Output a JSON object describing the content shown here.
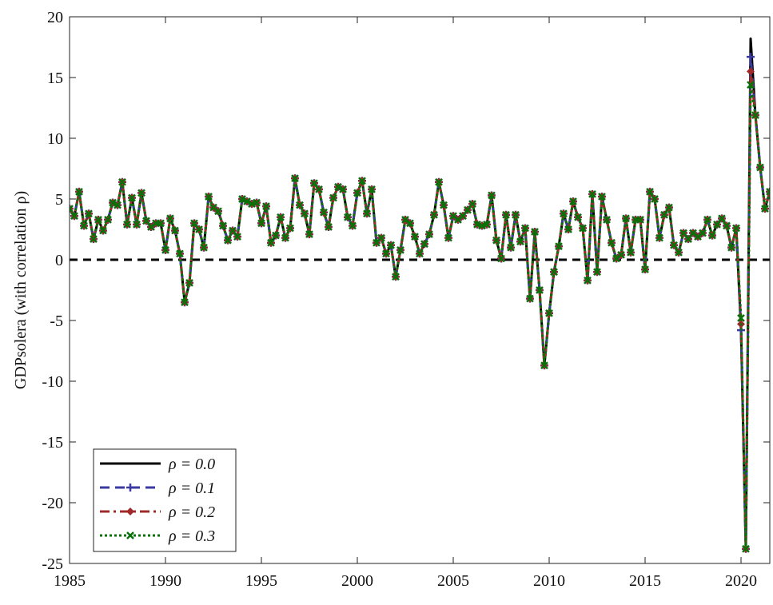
{
  "chart_data": {
    "type": "line",
    "y_label": "GDPsolera (with correlation ρ)",
    "xlim": [
      1985,
      2021.5
    ],
    "ylim": [
      -25,
      20
    ],
    "xticks": [
      1985,
      1990,
      1995,
      2000,
      2005,
      2010,
      2015,
      2020
    ],
    "yticks": [
      -25,
      -20,
      -15,
      -10,
      -5,
      0,
      5,
      10,
      15,
      20
    ],
    "hline": 0,
    "legend": "lower left",
    "x": [
      1985,
      1985.25,
      1985.5,
      1985.75,
      1986,
      1986.25,
      1986.5,
      1986.75,
      1987,
      1987.25,
      1987.5,
      1987.75,
      1988,
      1988.25,
      1988.5,
      1988.75,
      1989,
      1989.25,
      1989.5,
      1989.75,
      1990,
      1990.25,
      1990.5,
      1990.75,
      1991,
      1991.25,
      1991.5,
      1991.75,
      1992,
      1992.25,
      1992.5,
      1992.75,
      1993,
      1993.25,
      1993.5,
      1993.75,
      1994,
      1994.25,
      1994.5,
      1994.75,
      1995,
      1995.25,
      1995.5,
      1995.75,
      1996,
      1996.25,
      1996.5,
      1996.75,
      1997,
      1997.25,
      1997.5,
      1997.75,
      1998,
      1998.25,
      1998.5,
      1998.75,
      1999,
      1999.25,
      1999.5,
      1999.75,
      2000,
      2000.25,
      2000.5,
      2000.75,
      2001,
      2001.25,
      2001.5,
      2001.75,
      2002,
      2002.25,
      2002.5,
      2002.75,
      2003,
      2003.25,
      2003.5,
      2003.75,
      2004,
      2004.25,
      2004.5,
      2004.75,
      2005,
      2005.25,
      2005.5,
      2005.75,
      2006,
      2006.25,
      2006.5,
      2006.75,
      2007,
      2007.25,
      2007.5,
      2007.75,
      2008,
      2008.25,
      2008.5,
      2008.75,
      2009,
      2009.25,
      2009.5,
      2009.75,
      2010,
      2010.25,
      2010.5,
      2010.75,
      2011,
      2011.25,
      2011.5,
      2011.75,
      2012,
      2012.25,
      2012.5,
      2012.75,
      2013,
      2013.25,
      2013.5,
      2013.75,
      2014,
      2014.25,
      2014.5,
      2014.75,
      2015,
      2015.25,
      2015.5,
      2015.75,
      2016,
      2016.25,
      2016.5,
      2016.75,
      2017,
      2017.25,
      2017.5,
      2017.75,
      2018,
      2018.25,
      2018.5,
      2018.75,
      2019,
      2019.25,
      2019.5,
      2019.75,
      2020,
      2020.25,
      2020.5,
      2020.75,
      2021,
      2021.25,
      2021.5
    ],
    "series": [
      {
        "name": "ρ = 0.0",
        "color": "#000000",
        "style": "solid",
        "marker": "none",
        "values": [
          4.2,
          3.6,
          5.6,
          2.8,
          3.8,
          1.7,
          3.3,
          2.4,
          3.3,
          4.7,
          4.5,
          6.4,
          2.9,
          5.1,
          2.9,
          5.5,
          3.2,
          2.7,
          3.0,
          3.0,
          0.8,
          3.4,
          2.4,
          0.5,
          -3.5,
          -1.9,
          3.0,
          2.5,
          1.0,
          5.2,
          4.3,
          4.0,
          2.8,
          1.6,
          2.4,
          1.9,
          5.0,
          4.8,
          4.6,
          4.7,
          3.0,
          4.4,
          1.4,
          2.0,
          3.5,
          1.8,
          2.6,
          6.7,
          4.5,
          3.8,
          2.1,
          6.3,
          5.8,
          3.9,
          2.7,
          5.1,
          6.0,
          5.8,
          3.5,
          2.8,
          5.5,
          6.5,
          3.8,
          5.8,
          1.4,
          1.8,
          0.5,
          1.2,
          -1.4,
          0.8,
          3.3,
          3.0,
          1.9,
          0.5,
          1.3,
          2.1,
          3.7,
          6.4,
          4.5,
          1.8,
          3.6,
          3.3,
          3.6,
          4.1,
          4.6,
          2.9,
          2.8,
          2.9,
          5.3,
          1.6,
          0.1,
          3.7,
          1.0,
          3.7,
          1.5,
          2.6,
          -3.2,
          2.3,
          -2.5,
          -8.7,
          -4.4,
          -1.0,
          1.1,
          3.8,
          2.5,
          4.8,
          3.5,
          2.6,
          -1.7,
          5.4,
          -1.0,
          5.2,
          3.3,
          1.4,
          0.1,
          0.4,
          3.4,
          0.6,
          3.3,
          3.3,
          -0.8,
          5.6,
          5.0,
          1.8,
          3.7,
          4.3,
          1.2,
          0.6,
          2.2,
          1.7,
          2.2,
          1.9,
          2.2,
          3.3,
          2.0,
          2.9,
          3.4,
          2.8,
          1.0,
          2.6,
          -5.8,
          -23.8,
          18.2,
          11.9,
          7.6,
          4.2,
          5.6
        ]
      },
      {
        "name": "ρ = 0.1",
        "color": "#3a3aa0",
        "style": "dashed",
        "marker": "plus",
        "values": [
          4.2,
          3.6,
          5.6,
          2.8,
          3.8,
          1.7,
          3.3,
          2.4,
          3.3,
          4.7,
          4.5,
          6.4,
          2.9,
          5.1,
          2.9,
          5.5,
          3.2,
          2.7,
          3.0,
          3.0,
          0.8,
          3.4,
          2.4,
          0.5,
          -3.5,
          -1.9,
          3.0,
          2.5,
          1.0,
          5.2,
          4.3,
          4.0,
          2.8,
          1.6,
          2.4,
          1.9,
          5.0,
          4.8,
          4.6,
          4.7,
          3.0,
          4.4,
          1.4,
          2.0,
          3.5,
          1.8,
          2.6,
          6.7,
          4.5,
          3.8,
          2.1,
          6.3,
          5.8,
          3.9,
          2.7,
          5.1,
          6.0,
          5.8,
          3.5,
          2.8,
          5.5,
          6.5,
          3.8,
          5.8,
          1.4,
          1.8,
          0.5,
          1.2,
          -1.4,
          0.8,
          3.3,
          3.0,
          1.9,
          0.5,
          1.3,
          2.1,
          3.7,
          6.4,
          4.5,
          1.8,
          3.6,
          3.3,
          3.6,
          4.1,
          4.6,
          2.9,
          2.8,
          2.9,
          5.3,
          1.6,
          0.1,
          3.7,
          1.0,
          3.7,
          1.5,
          2.6,
          -3.2,
          2.3,
          -2.5,
          -8.7,
          -4.4,
          -1.0,
          1.1,
          3.8,
          2.5,
          4.8,
          3.5,
          2.6,
          -1.7,
          5.4,
          -1.0,
          5.2,
          3.3,
          1.4,
          0.1,
          0.4,
          3.4,
          0.6,
          3.3,
          3.3,
          -0.8,
          5.6,
          5.0,
          1.8,
          3.7,
          4.3,
          1.2,
          0.6,
          2.2,
          1.7,
          2.2,
          1.9,
          2.2,
          3.3,
          2.0,
          2.9,
          3.4,
          2.8,
          1.0,
          2.6,
          -5.8,
          -23.8,
          16.7,
          11.9,
          7.6,
          4.2,
          5.6
        ]
      },
      {
        "name": "ρ = 0.2",
        "color": "#a02a2a",
        "style": "dashdot",
        "marker": "diamond",
        "values": [
          4.2,
          3.6,
          5.6,
          2.8,
          3.8,
          1.7,
          3.3,
          2.4,
          3.3,
          4.7,
          4.5,
          6.4,
          2.9,
          5.1,
          2.9,
          5.5,
          3.2,
          2.7,
          3.0,
          3.0,
          0.8,
          3.4,
          2.4,
          0.5,
          -3.5,
          -1.9,
          3.0,
          2.5,
          1.0,
          5.2,
          4.3,
          4.0,
          2.8,
          1.6,
          2.4,
          1.9,
          5.0,
          4.8,
          4.6,
          4.7,
          3.0,
          4.4,
          1.4,
          2.0,
          3.5,
          1.8,
          2.6,
          6.7,
          4.5,
          3.8,
          2.1,
          6.3,
          5.8,
          3.9,
          2.7,
          5.1,
          6.0,
          5.8,
          3.5,
          2.8,
          5.5,
          6.5,
          3.8,
          5.8,
          1.4,
          1.8,
          0.5,
          1.2,
          -1.4,
          0.8,
          3.3,
          3.0,
          1.9,
          0.5,
          1.3,
          2.1,
          3.7,
          6.4,
          4.5,
          1.8,
          3.6,
          3.3,
          3.6,
          4.1,
          4.6,
          2.9,
          2.8,
          2.9,
          5.3,
          1.6,
          0.1,
          3.7,
          1.0,
          3.7,
          1.5,
          2.6,
          -3.2,
          2.3,
          -2.5,
          -8.7,
          -4.4,
          -1.0,
          1.1,
          3.8,
          2.5,
          4.8,
          3.5,
          2.6,
          -1.7,
          5.4,
          -1.0,
          5.2,
          3.3,
          1.4,
          0.1,
          0.4,
          3.4,
          0.6,
          3.3,
          3.3,
          -0.8,
          5.6,
          5.0,
          1.8,
          3.7,
          4.3,
          1.2,
          0.6,
          2.2,
          1.7,
          2.2,
          1.9,
          2.2,
          3.3,
          2.0,
          2.9,
          3.4,
          2.8,
          1.0,
          2.6,
          -5.3,
          -23.8,
          15.5,
          11.9,
          7.6,
          4.2,
          5.6
        ]
      },
      {
        "name": "ρ = 0.3",
        "color": "#0a700a",
        "style": "dotted",
        "marker": "x",
        "values": [
          4.2,
          3.6,
          5.6,
          2.8,
          3.8,
          1.7,
          3.3,
          2.4,
          3.3,
          4.7,
          4.5,
          6.4,
          2.9,
          5.1,
          2.9,
          5.5,
          3.2,
          2.7,
          3.0,
          3.0,
          0.8,
          3.4,
          2.4,
          0.5,
          -3.5,
          -1.9,
          3.0,
          2.5,
          1.0,
          5.2,
          4.3,
          4.0,
          2.8,
          1.6,
          2.4,
          1.9,
          5.0,
          4.8,
          4.6,
          4.7,
          3.0,
          4.4,
          1.4,
          2.0,
          3.5,
          1.8,
          2.6,
          6.7,
          4.5,
          3.8,
          2.1,
          6.3,
          5.8,
          3.9,
          2.7,
          5.1,
          6.0,
          5.8,
          3.5,
          2.8,
          5.5,
          6.5,
          3.8,
          5.8,
          1.4,
          1.8,
          0.5,
          1.2,
          -1.4,
          0.8,
          3.3,
          3.0,
          1.9,
          0.5,
          1.3,
          2.1,
          3.7,
          6.4,
          4.5,
          1.8,
          3.6,
          3.3,
          3.6,
          4.1,
          4.6,
          2.9,
          2.8,
          2.9,
          5.3,
          1.6,
          0.1,
          3.7,
          1.0,
          3.7,
          1.5,
          2.6,
          -3.2,
          2.3,
          -2.5,
          -8.7,
          -4.4,
          -1.0,
          1.1,
          3.8,
          2.5,
          4.8,
          3.5,
          2.6,
          -1.7,
          5.4,
          -1.0,
          5.2,
          3.3,
          1.4,
          0.1,
          0.4,
          3.4,
          0.6,
          3.3,
          3.3,
          -0.8,
          5.6,
          5.0,
          1.8,
          3.7,
          4.3,
          1.2,
          0.6,
          2.2,
          1.7,
          2.2,
          1.9,
          2.2,
          3.3,
          2.0,
          2.9,
          3.4,
          2.8,
          1.0,
          2.6,
          -4.8,
          -23.8,
          14.4,
          11.9,
          7.6,
          4.2,
          5.6
        ]
      }
    ]
  }
}
